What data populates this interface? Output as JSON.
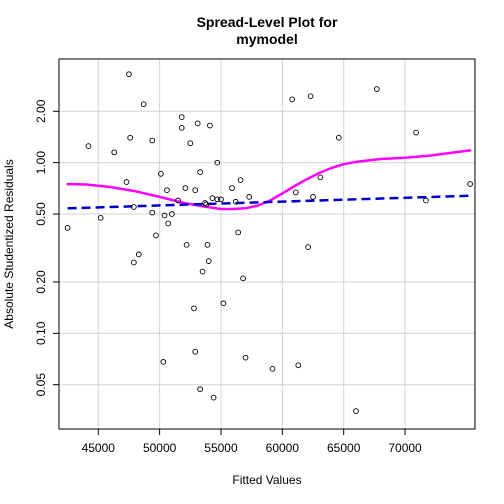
{
  "chart_data": {
    "type": "scatter",
    "title": "Spread-Level Plot for\nmymodel",
    "xlabel": "Fitted Values",
    "ylabel": "Absolute Studentized Residuals",
    "log_y": true,
    "grid": true,
    "xlim": [
      41800,
      75700
    ],
    "ylim": [
      0.0275,
      4.05
    ],
    "x_ticks": [
      45000,
      50000,
      55000,
      60000,
      65000,
      70000
    ],
    "y_ticks": [
      0.05,
      0.1,
      0.2,
      0.5,
      1.0,
      2.0
    ],
    "x_tick_labels": [
      "45000",
      "50000",
      "55000",
      "60000",
      "65000",
      "70000"
    ],
    "y_tick_labels": [
      "0.05",
      "0.10",
      "0.20",
      "0.50",
      "1.00",
      "2.00"
    ],
    "colors": {
      "points": "#000000",
      "smooth": "#ff00ff",
      "fit": "#0000cd",
      "grid": "#d3d3d3",
      "box": "#000000"
    },
    "points": [
      {
        "x": 42500,
        "y": 0.415
      },
      {
        "x": 44200,
        "y": 1.25
      },
      {
        "x": 45200,
        "y": 0.475
      },
      {
        "x": 46300,
        "y": 1.15
      },
      {
        "x": 47300,
        "y": 0.77
      },
      {
        "x": 47500,
        "y": 3.3
      },
      {
        "x": 47600,
        "y": 1.4
      },
      {
        "x": 47900,
        "y": 0.55
      },
      {
        "x": 47900,
        "y": 0.26
      },
      {
        "x": 48300,
        "y": 0.29
      },
      {
        "x": 48700,
        "y": 2.2
      },
      {
        "x": 49400,
        "y": 0.51
      },
      {
        "x": 49400,
        "y": 1.35
      },
      {
        "x": 49700,
        "y": 0.375
      },
      {
        "x": 50100,
        "y": 0.86
      },
      {
        "x": 50300,
        "y": 0.068
      },
      {
        "x": 50400,
        "y": 0.49
      },
      {
        "x": 50600,
        "y": 0.69
      },
      {
        "x": 50700,
        "y": 0.44
      },
      {
        "x": 51000,
        "y": 0.5
      },
      {
        "x": 51500,
        "y": 0.6
      },
      {
        "x": 51800,
        "y": 1.6
      },
      {
        "x": 51800,
        "y": 1.85
      },
      {
        "x": 52100,
        "y": 0.71
      },
      {
        "x": 52200,
        "y": 0.33
      },
      {
        "x": 52500,
        "y": 1.3
      },
      {
        "x": 52800,
        "y": 0.14
      },
      {
        "x": 52900,
        "y": 0.078
      },
      {
        "x": 52900,
        "y": 0.69
      },
      {
        "x": 53100,
        "y": 1.7
      },
      {
        "x": 53300,
        "y": 0.88
      },
      {
        "x": 53300,
        "y": 0.047
      },
      {
        "x": 53500,
        "y": 0.23
      },
      {
        "x": 53700,
        "y": 0.58
      },
      {
        "x": 53800,
        "y": 0.57
      },
      {
        "x": 53900,
        "y": 0.33
      },
      {
        "x": 54000,
        "y": 0.265
      },
      {
        "x": 54100,
        "y": 1.65
      },
      {
        "x": 54300,
        "y": 0.62
      },
      {
        "x": 54400,
        "y": 0.042
      },
      {
        "x": 54700,
        "y": 0.61
      },
      {
        "x": 54700,
        "y": 1.0
      },
      {
        "x": 55000,
        "y": 0.61
      },
      {
        "x": 55200,
        "y": 0.15
      },
      {
        "x": 55900,
        "y": 0.71
      },
      {
        "x": 56200,
        "y": 0.59
      },
      {
        "x": 56400,
        "y": 0.39
      },
      {
        "x": 56600,
        "y": 0.79
      },
      {
        "x": 56800,
        "y": 0.21
      },
      {
        "x": 57000,
        "y": 0.072
      },
      {
        "x": 57300,
        "y": 0.63
      },
      {
        "x": 59200,
        "y": 0.062
      },
      {
        "x": 60800,
        "y": 2.35
      },
      {
        "x": 61100,
        "y": 0.67
      },
      {
        "x": 61300,
        "y": 0.065
      },
      {
        "x": 62100,
        "y": 0.32
      },
      {
        "x": 62300,
        "y": 2.45
      },
      {
        "x": 62500,
        "y": 0.63
      },
      {
        "x": 63100,
        "y": 0.82
      },
      {
        "x": 64600,
        "y": 1.4
      },
      {
        "x": 66000,
        "y": 0.035
      },
      {
        "x": 67700,
        "y": 2.7
      },
      {
        "x": 70900,
        "y": 1.5
      },
      {
        "x": 71700,
        "y": 0.6
      },
      {
        "x": 75300,
        "y": 0.75
      }
    ],
    "series": [
      {
        "type": "smooth",
        "x": [
          42500,
          44000,
          46000,
          48000,
          50000,
          52000,
          53500,
          55000,
          56000,
          57000,
          58000,
          59000,
          60000,
          61000,
          62000,
          63000,
          64000,
          65000,
          66000,
          68000,
          70000,
          72000,
          75300
        ],
        "y": [
          0.75,
          0.745,
          0.72,
          0.68,
          0.63,
          0.58,
          0.555,
          0.535,
          0.535,
          0.54,
          0.56,
          0.6,
          0.66,
          0.73,
          0.8,
          0.87,
          0.93,
          0.98,
          1.01,
          1.05,
          1.07,
          1.1,
          1.18
        ]
      },
      {
        "type": "fit",
        "x": [
          42500,
          75300
        ],
        "y": [
          0.54,
          0.64
        ]
      }
    ]
  }
}
